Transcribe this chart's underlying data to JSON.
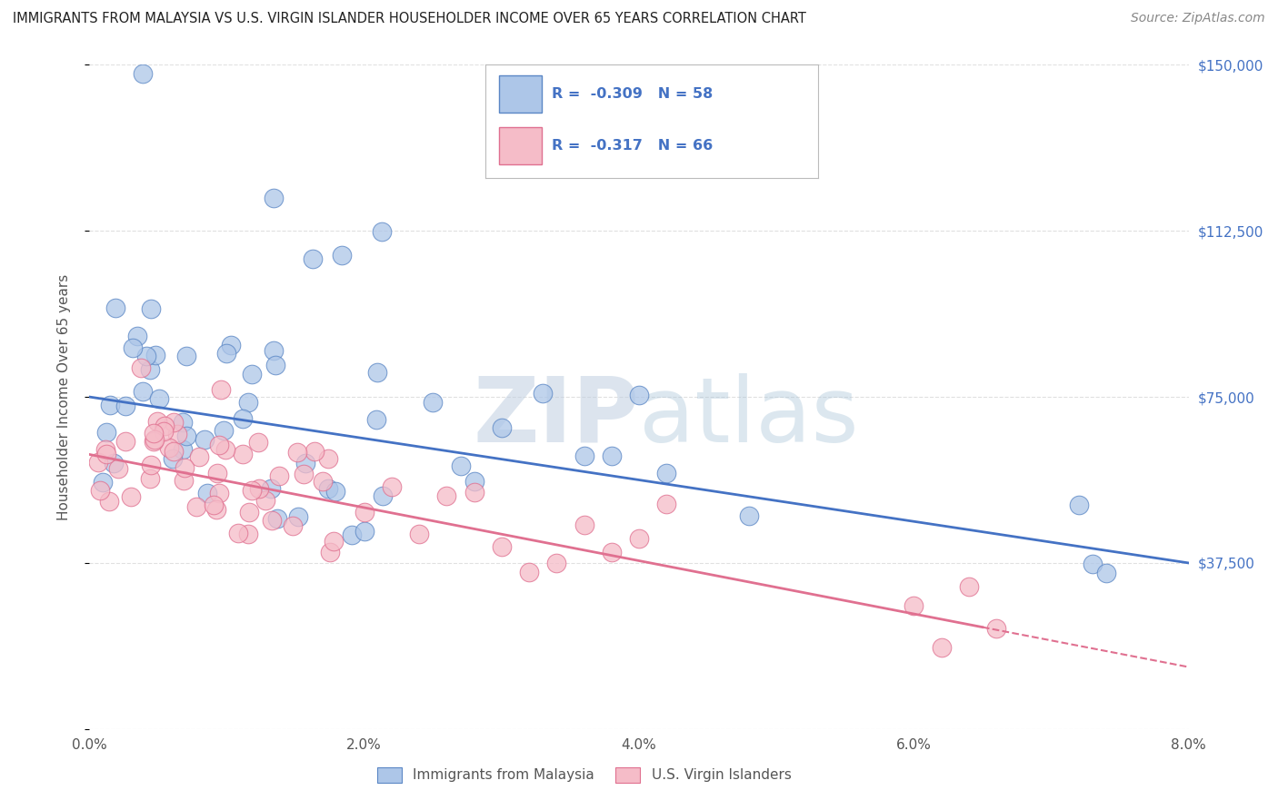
{
  "title": "IMMIGRANTS FROM MALAYSIA VS U.S. VIRGIN ISLANDER HOUSEHOLDER INCOME OVER 65 YEARS CORRELATION CHART",
  "source": "Source: ZipAtlas.com",
  "ylabel": "Householder Income Over 65 years",
  "blue_label": "Immigrants from Malaysia",
  "pink_label": "U.S. Virgin Islanders",
  "blue_R": -0.309,
  "blue_N": 58,
  "pink_R": -0.317,
  "pink_N": 66,
  "xlim": [
    0.0,
    0.08
  ],
  "ylim": [
    0,
    150000
  ],
  "yticks": [
    0,
    37500,
    75000,
    112500,
    150000
  ],
  "ytick_labels_right": [
    "",
    "$37,500",
    "$75,000",
    "$112,500",
    "$150,000"
  ],
  "xtick_labels": [
    "0.0%",
    "",
    "2.0%",
    "",
    "4.0%",
    "",
    "6.0%",
    "",
    "8.0%"
  ],
  "xticks": [
    0.0,
    0.01,
    0.02,
    0.03,
    0.04,
    0.05,
    0.06,
    0.07,
    0.08
  ],
  "blue_color": "#adc6e8",
  "blue_edge_color": "#5b87c5",
  "blue_line_color": "#4472c4",
  "pink_color": "#f5bcc8",
  "pink_edge_color": "#e07090",
  "pink_line_color": "#e07090",
  "watermark_zip": "ZIP",
  "watermark_atlas": "atlas",
  "grid_color": "#e0e0e0",
  "title_color": "#222222",
  "source_color": "#888888",
  "label_color": "#555555",
  "right_axis_color": "#4472c4"
}
